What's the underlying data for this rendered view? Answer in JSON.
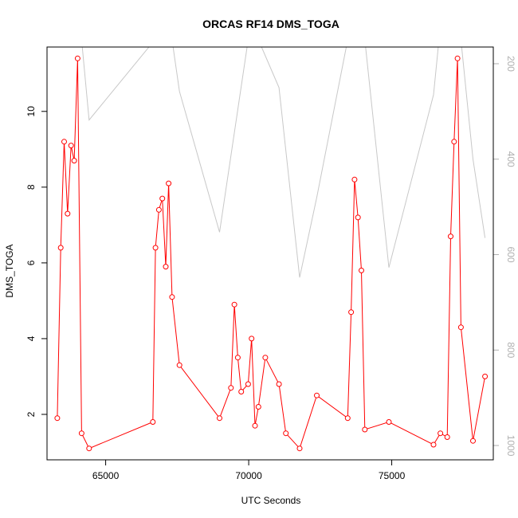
{
  "chart_data": {
    "type": "line",
    "title": "ORCAS RF14 DMS_TOGA",
    "xlabel": "UTC Seconds",
    "ylabel": "DMS_TOGA",
    "xlim": [
      62950,
      78550
    ],
    "ylim": [
      0.8,
      11.7
    ],
    "y2lim": [
      1030,
      165
    ],
    "x_ticks": [
      65000,
      70000,
      75000
    ],
    "y_ticks": [
      2,
      4,
      6,
      8,
      10
    ],
    "y2_ticks": [
      200,
      400,
      600,
      800,
      1000
    ],
    "grid": false,
    "series": [
      {
        "color": "#ff0000",
        "markers": "open-circle",
        "axis": "left",
        "x": [
          63310,
          63430,
          63550,
          63670,
          63790,
          63900,
          64020,
          64160,
          64420,
          66650,
          66740,
          66860,
          66980,
          67100,
          67200,
          67320,
          67580,
          68980,
          69380,
          69500,
          69620,
          69740,
          69980,
          70100,
          70220,
          70340,
          70580,
          71060,
          71300,
          71780,
          72380,
          73460,
          73580,
          73700,
          73820,
          73940,
          74060,
          74900,
          76460,
          76700,
          76940,
          77060,
          77180,
          77300,
          77420,
          77840,
          78260
        ],
        "y": [
          1.9,
          6.4,
          9.2,
          7.3,
          9.1,
          8.7,
          11.4,
          1.5,
          1.1,
          1.8,
          6.4,
          7.4,
          7.7,
          5.9,
          8.1,
          5.1,
          3.3,
          1.9,
          2.7,
          4.9,
          3.5,
          2.6,
          2.8,
          4.0,
          1.7,
          2.2,
          3.5,
          2.8,
          1.5,
          1.1,
          2.5,
          1.9,
          4.7,
          8.2,
          7.2,
          5.8,
          1.6,
          1.8,
          1.2,
          1.5,
          1.4,
          6.7,
          9.2,
          11.4,
          4.3,
          1.3,
          3.0
        ]
      },
      {
        "color": "#c8c8c8",
        "markers": "none",
        "axis": "right",
        "x": [
          63310,
          63430,
          63670,
          64020,
          64160,
          64420,
          66650,
          66740,
          66980,
          67200,
          67320,
          67580,
          68980,
          69980,
          70100,
          70340,
          71060,
          71780,
          72380,
          73460,
          73580,
          74060,
          74900,
          76460,
          76700,
          76940,
          77180,
          77420,
          77840,
          78260
        ],
        "y": [
          108,
          150,
          110,
          108,
          150,
          318,
          155,
          120,
          108,
          120,
          150,
          258,
          553,
          150,
          120,
          150,
          250,
          648,
          480,
          150,
          108,
          150,
          627,
          265,
          120,
          108,
          120,
          150,
          400,
          565
        ]
      }
    ]
  }
}
